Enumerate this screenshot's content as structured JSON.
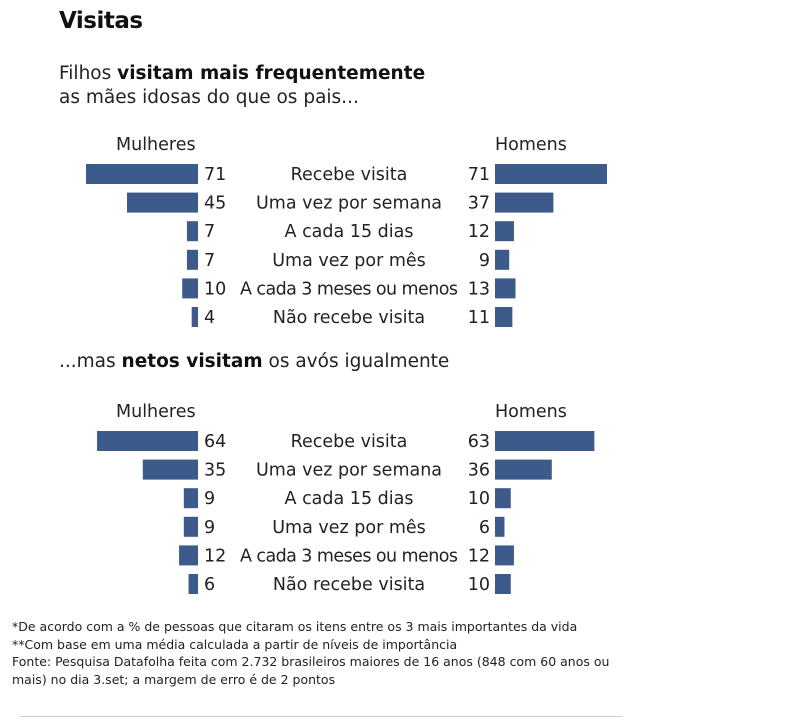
{
  "title": "Visitas",
  "headline1": {
    "plain_start": "Filhos ",
    "bold": "visitam mais frequentemente",
    "line2": "as mães idosas do que os pais..."
  },
  "headline2": {
    "plain_start": "...mas ",
    "bold": "netos visitam",
    "plain_end": " os avós igualmente"
  },
  "colors": {
    "bar": "#3c5a8a"
  },
  "chart_data": [
    {
      "type": "bar",
      "orientation": "horizontal-butterfly",
      "categories": [
        "Recebe visita",
        "Uma vez por semana",
        "A cada 15 dias",
        "Uma vez por mês",
        "A cada 3 meses ou menos",
        "Não recebe visita"
      ],
      "series": [
        {
          "name": "Mulheres",
          "values": [
            71,
            45,
            7,
            7,
            10,
            4
          ]
        },
        {
          "name": "Homens",
          "values": [
            71,
            37,
            12,
            9,
            13,
            11
          ]
        }
      ]
    },
    {
      "type": "bar",
      "orientation": "horizontal-butterfly",
      "categories": [
        "Recebe visita",
        "Uma vez por semana",
        "A cada 15 dias",
        "Uma vez por mês",
        "A cada 3 meses ou menos",
        "Não recebe visita"
      ],
      "series": [
        {
          "name": "Mulheres",
          "values": [
            64,
            35,
            9,
            9,
            12,
            6
          ]
        },
        {
          "name": "Homens",
          "values": [
            63,
            36,
            10,
            6,
            12,
            10
          ]
        }
      ]
    }
  ],
  "notes": [
    "*De acordo com a % de pessoas que citaram os itens entre os 3 mais importantes da vida",
    "**Com base em uma média calculada a partir de níveis de importância",
    "Fonte: Pesquisa Datafolha feita com 2.732 brasileiros maiores de 16 anos (848 com 60 anos ou mais) no dia 3.set; a margem de erro é de 2 pontos"
  ]
}
